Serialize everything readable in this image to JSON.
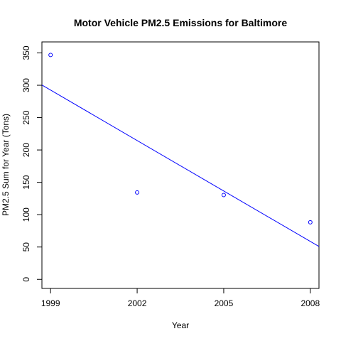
{
  "chart_data": {
    "type": "scatter",
    "title": "Motor Vehicle PM2.5 Emissions for Baltimore",
    "xlabel": "Year",
    "ylabel": "PM2.5 Sum for Year (Tons)",
    "x_ticks": [
      1999,
      2002,
      2005,
      2008
    ],
    "y_ticks": [
      0,
      50,
      100,
      150,
      200,
      250,
      300,
      350
    ],
    "xlim": [
      1998.7,
      2008.3
    ],
    "ylim": [
      -14,
      367
    ],
    "grid": false,
    "series": [
      {
        "points": [
          {
            "x": 1999,
            "y": 346.8
          },
          {
            "x": 2002,
            "y": 134.3
          },
          {
            "x": 2005,
            "y": 130.4
          },
          {
            "x": 2008,
            "y": 88.3
          }
        ]
      }
    ],
    "trend_line": {
      "type": "linear_fit",
      "x": [
        1998.7,
        2008.3
      ],
      "y": [
        300.4,
        50.8
      ]
    },
    "colors": {
      "points": "#0000ff",
      "trend_line": "#0000ff",
      "axis": "#000000"
    }
  }
}
